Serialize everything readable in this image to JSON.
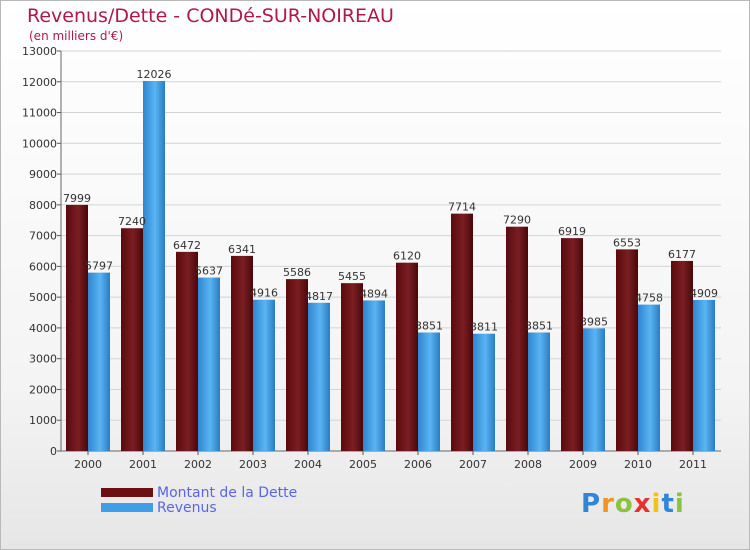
{
  "colors": {
    "dette": "#6b0f12",
    "revenus": "#3f9ee6",
    "title": "#b1184a",
    "legend_text": "#5865e8"
  },
  "chart_data": {
    "type": "bar",
    "title": "Revenus/Dette - CONDé-SUR-NOIREAU",
    "subtitle": "(en milliers d'€)",
    "categories": [
      "2000",
      "2001",
      "2002",
      "2003",
      "2004",
      "2005",
      "2006",
      "2007",
      "2008",
      "2009",
      "2010",
      "2011"
    ],
    "series": [
      {
        "name": "Montant de la Dette",
        "values": [
          7999,
          7240,
          6472,
          6341,
          5586,
          5455,
          6120,
          7714,
          7290,
          6919,
          6553,
          6177
        ]
      },
      {
        "name": "Revenus",
        "values": [
          5797,
          12026,
          5637,
          4916,
          4817,
          4894,
          3851,
          3811,
          3851,
          3985,
          4758,
          4909
        ]
      }
    ],
    "ylim": [
      0,
      13000
    ],
    "yticks": [
      0,
      1000,
      2000,
      3000,
      4000,
      5000,
      6000,
      7000,
      8000,
      9000,
      10000,
      11000,
      12000,
      13000
    ],
    "grid": true,
    "legend_position": "bottom-left"
  },
  "legend": {
    "items": [
      {
        "label": "Montant de la Dette"
      },
      {
        "label": "Revenus"
      }
    ]
  },
  "logo": {
    "letters": [
      "P",
      "r",
      "o",
      "x",
      "i",
      "t",
      "i"
    ],
    "colors": [
      "#2f86d8",
      "#f5921e",
      "#8ac43f",
      "#e8312e",
      "#f5c116",
      "#2f86d8",
      "#8ac43f"
    ]
  }
}
